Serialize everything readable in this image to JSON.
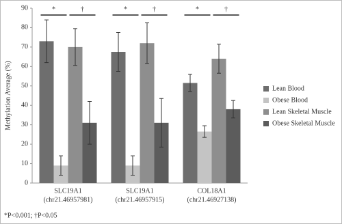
{
  "chart_data": {
    "type": "bar",
    "y_label": "Methylation Average (%)",
    "categories": [
      [
        "SLC19A1",
        "(chr21.46957981)"
      ],
      [
        "SLC19A1",
        "(chr21.46957915)"
      ],
      [
        "COL18A1",
        "(chr21.46927138)"
      ]
    ],
    "series": [
      {
        "name": "Lean Blood",
        "color": "#6e6e6e",
        "values": [
          73,
          67.5,
          51.5
        ],
        "errors": [
          11,
          10,
          4.5
        ]
      },
      {
        "name": "Obese Blood",
        "color": "#c4c4c4",
        "values": [
          9,
          9,
          26.5
        ],
        "errors": [
          5,
          5,
          3
        ]
      },
      {
        "name": "Lean Skeletal Muscle",
        "color": "#8e8e8e",
        "values": [
          70,
          72,
          64
        ],
        "errors": [
          9.5,
          10.5,
          7.5
        ]
      },
      {
        "name": "Obese Skeletal Muscle",
        "color": "#5c5c5c",
        "values": [
          31,
          31,
          38
        ],
        "errors": [
          11,
          12.5,
          4.5
        ]
      }
    ],
    "annotations": [
      "*",
      "†",
      "*",
      "†",
      "*",
      "†"
    ],
    "footnote": "*P<0.001; †P<0.05",
    "ylim": [
      0,
      90
    ],
    "yticks": [
      0,
      10,
      20,
      30,
      40,
      50,
      60,
      70,
      80,
      90
    ],
    "legend": "right"
  }
}
